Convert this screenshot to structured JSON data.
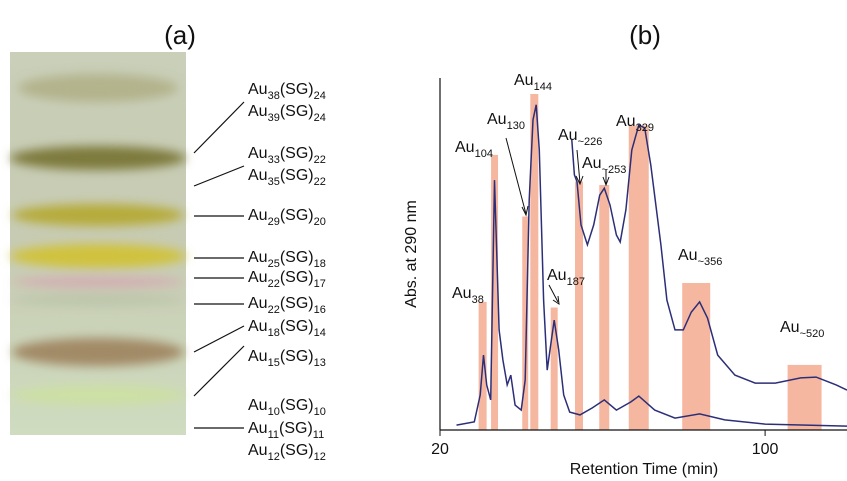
{
  "panel_a": {
    "title": "(a)",
    "labels": [
      [
        "Au",
        "38",
        "(SG)",
        "24"
      ],
      [
        "Au",
        "39",
        "(SG)",
        "24"
      ],
      [
        "Au",
        "33",
        "(SG)",
        "22"
      ],
      [
        "Au",
        "35",
        "(SG)",
        "22"
      ],
      [
        "Au",
        "29",
        "(SG)",
        "20"
      ],
      [
        "Au",
        "25",
        "(SG)",
        "18"
      ],
      [
        "Au",
        "22",
        "(SG)",
        "17"
      ],
      [
        "Au",
        "22",
        "(SG)",
        "16"
      ],
      [
        "Au",
        "18",
        "(SG)",
        "14"
      ],
      [
        "Au",
        "15",
        "(SG)",
        "13"
      ],
      [
        "Au",
        "10",
        "(SG)",
        "10"
      ],
      [
        "Au",
        "11",
        "(SG)",
        "11"
      ],
      [
        "Au",
        "12",
        "(SG)",
        "12"
      ]
    ]
  },
  "chart_data": {
    "type": "chromatogram",
    "title": "(b)",
    "x_label": "Retention Time (min)",
    "y_label": "Abs. at 290 nm",
    "x_scale": "log",
    "xlim": [
      20,
      150
    ],
    "xticks": [
      20,
      100
    ],
    "ylim": [
      0,
      100
    ],
    "bars": {
      "color": "#f6b7a1",
      "x": [
        24.7,
        26.2,
        30.5,
        31.9,
        35.2,
        39.8,
        45.1,
        53.5,
        71.1,
        121.6
      ],
      "values": [
        36.6,
        78.6,
        61,
        96,
        35,
        71,
        70,
        87,
        42,
        18.6
      ],
      "labels": [
        [
          "Au",
          "38"
        ],
        [
          "Au",
          "104"
        ],
        [
          "Au",
          "130"
        ],
        [
          "Au",
          "144"
        ],
        [
          "Au",
          "187"
        ],
        [
          "Au",
          "~226"
        ],
        [
          "Au",
          "~253"
        ],
        [
          "Au",
          "329"
        ],
        [
          "Au",
          "~356"
        ],
        [
          "Au",
          "~520"
        ]
      ]
    },
    "traces": [
      {
        "color": "#2c2f78",
        "x": [
          21.7,
          23.7,
          24.4,
          24.8,
          25.2,
          25.7,
          26.2,
          26.8,
          27.3,
          27.9,
          28.4,
          29.0,
          29.9,
          30.5,
          31.1,
          31.7,
          32.2,
          32.7,
          33.4,
          34.0,
          34.6,
          35.2,
          36.0,
          36.9,
          38.0,
          40.0,
          42.5,
          45.1,
          47.9,
          51.4,
          53.5,
          57.9,
          64.0,
          72.3,
          81.9,
          100,
          150
        ],
        "values": [
          1.4,
          2.3,
          10,
          21.4,
          12.9,
          8.6,
          71.4,
          28.6,
          20,
          12.9,
          15.7,
          7.1,
          5.7,
          14.3,
          65.7,
          88.6,
          92.9,
          80,
          37.1,
          17.1,
          24.3,
          31.4,
          22.9,
          10,
          5.1,
          4.3,
          6.3,
          8.6,
          5.7,
          8,
          9.7,
          5.7,
          3.4,
          4.6,
          2.9,
          1.7,
          1.1
        ]
      },
      {
        "color": "#2c2f78",
        "x": [
          38.4,
          38.9,
          39.4,
          40.2,
          41.5,
          42.8,
          44.1,
          45.1,
          46.4,
          47.9,
          48.8,
          50.2,
          51.7,
          53.5,
          55.1,
          56.8,
          59.7,
          61.5,
          64.0,
          66.7,
          69.4,
          72.3,
          75.2,
          79.1,
          86.1,
          95.2,
          105.2,
          119.3,
          128.7,
          142.2,
          150
        ],
        "values": [
          82.9,
          72.9,
          70.9,
          58.6,
          52.9,
          58.6,
          67.1,
          69.1,
          64.3,
          55.7,
          53.7,
          62.9,
          80,
          87.1,
          86.3,
          75.7,
          52.9,
          37.1,
          28.6,
          28.6,
          33.7,
          36.6,
          32,
          21.4,
          15.7,
          13.4,
          13.4,
          14.9,
          15.1,
          12.9,
          11.4
        ]
      }
    ]
  }
}
